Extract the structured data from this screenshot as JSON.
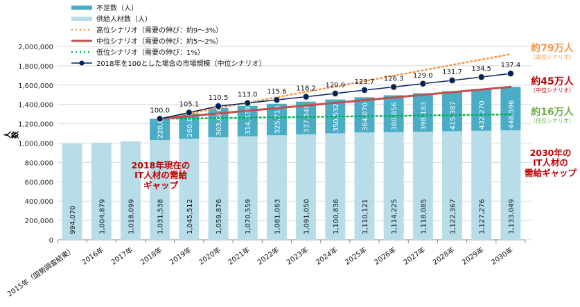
{
  "chart_data": {
    "type": "bar",
    "stacked": true,
    "ylabel": "人数",
    "ylim": [
      0,
      2000000
    ],
    "yticks": [
      "0",
      "200,000",
      "400,000",
      "600,000",
      "800,000",
      "1,000,000",
      "1,200,000",
      "1,400,000",
      "1,600,000",
      "1,800,000",
      "2,000,000"
    ],
    "grid": true,
    "legend_position": "top-left",
    "categories": [
      "2015年（国勢調査結果）",
      "2016年",
      "2017年",
      "2018年",
      "2019年",
      "2020年",
      "2021年",
      "2022年",
      "2023年",
      "2024年",
      "2025年",
      "2026年",
      "2027年",
      "2028年",
      "2029年",
      "2030年"
    ],
    "series": [
      {
        "name": "供給人材数（人）",
        "color": "#b7dde8",
        "values": [
          994070,
          1004879,
          1018099,
          1031538,
          1045512,
          1059876,
          1070559,
          1081063,
          1091050,
          1100836,
          1110121,
          1114225,
          1118085,
          1122367,
          1127276,
          1133049
        ],
        "labels": [
          "994,070",
          "1,004,879",
          "1,018,099",
          "1,031,538",
          "1,045,512",
          "1,059,876",
          "1,070,559",
          "1,081,063",
          "1,091,050",
          "1,100,836",
          "1,110,121",
          "1,114,225",
          "1,118,085",
          "1,122,367",
          "1,127,276",
          "1,133,049"
        ]
      },
      {
        "name": "不足数（人）",
        "color": "#4bacc6",
        "values": [
          null,
          null,
          null,
          220000,
          260835,
          303680,
          314439,
          325714,
          337848,
          350532,
          364070,
          380856,
          398183,
          415387,
          432270,
          448596
        ],
        "labels": [
          "",
          "",
          "",
          "220,000",
          "260,835",
          "303,680",
          "314,439",
          "325,714",
          "337,848",
          "350,532",
          "364,070",
          "380,856",
          "398,183",
          "415,387",
          "432,270",
          "448,596"
        ]
      }
    ],
    "lines": [
      {
        "name": "高位シナリオ（需要の伸び：約9～3%）",
        "color": "#f79646",
        "style": "dotted",
        "x_range": [
          "2018年",
          "2030年"
        ],
        "y_start": 1251538,
        "y_end": 1920000
      },
      {
        "name": "中位シナリオ（需要の伸び：約5～2%）",
        "color": "#c0504d",
        "style": "solid",
        "x_range": [
          "2018年",
          "2030年"
        ],
        "y_start": 1251538,
        "y_end": 1581645
      },
      {
        "name": "低位シナリオ（需要の伸び：1%）",
        "color": "#00b050",
        "style": "dotted",
        "x_range": [
          "2018年",
          "2030年"
        ],
        "y_start": 1251538,
        "y_end": 1297000
      },
      {
        "name": "2018年を100とした場合の市場規模（中位シナリオ）",
        "color": "#002060",
        "style": "solid-marker",
        "categories": [
          "2018年",
          "2019年",
          "2020年",
          "2021年",
          "2022年",
          "2023年",
          "2024年",
          "2025年",
          "2026年",
          "2027年",
          "2028年",
          "2029年",
          "2030年"
        ],
        "values": [
          100.0,
          105.1,
          110.5,
          113.0,
          115.6,
          118.2,
          120.9,
          123.7,
          126.3,
          129.0,
          131.7,
          134.5,
          137.4
        ],
        "labels": [
          "100.0",
          "105.1",
          "110.5",
          "113.0",
          "115.6",
          "118.2",
          "120.9",
          "123.7",
          "126.3",
          "129.0",
          "131.7",
          "134.5",
          "137.4"
        ]
      }
    ],
    "annotations": {
      "gap_2018": [
        "2018年現在の",
        "IT人材の需給",
        "ギャップ"
      ],
      "gap_2030": [
        "2030年の",
        "IT人材の",
        "需給ギャップ"
      ],
      "high": {
        "value": "約79万人",
        "label": "（高位シナリオ）",
        "color": "#f79646"
      },
      "mid": {
        "value": "約45万人",
        "label": "（中位シナリオ）",
        "color": "#c00000"
      },
      "low": {
        "value": "約16万人",
        "label": "（低位シナリオ）",
        "color": "#70ad47"
      }
    }
  }
}
